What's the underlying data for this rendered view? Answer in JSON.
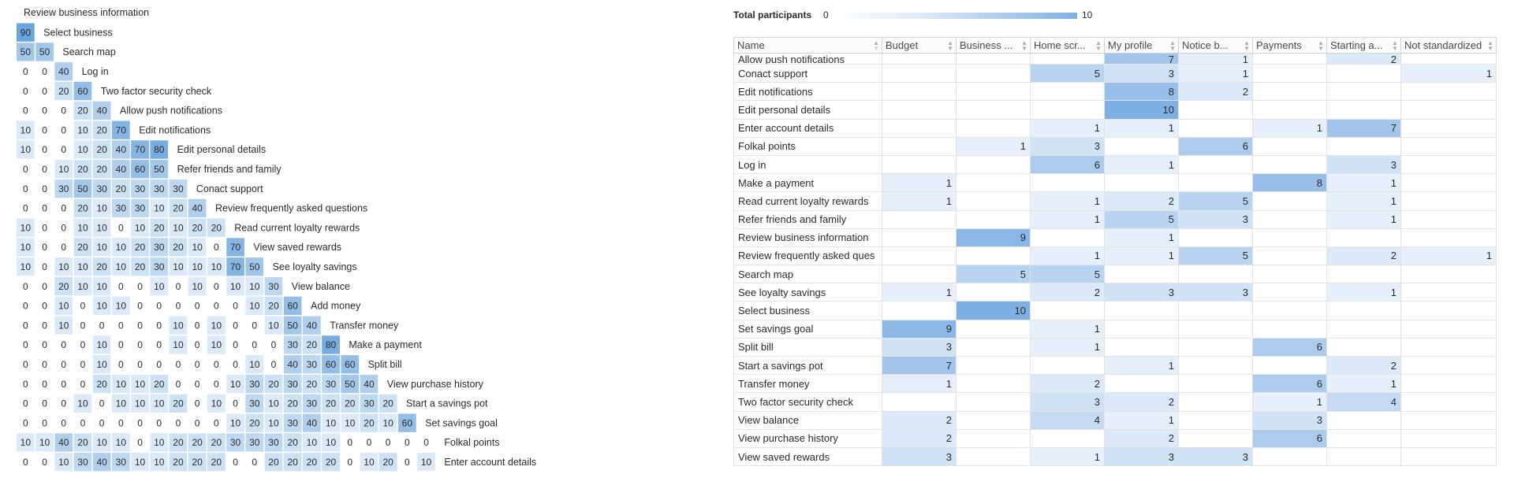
{
  "chart_data": [
    {
      "type": "heatmap",
      "title": "",
      "top_label": "Review business information",
      "rows": [
        {
          "label": "Select business",
          "values": [
            90
          ]
        },
        {
          "label": "Search map",
          "values": [
            50,
            50
          ]
        },
        {
          "label": "Log in",
          "values": [
            0,
            0,
            40
          ]
        },
        {
          "label": "Two factor security check",
          "values": [
            0,
            0,
            20,
            60
          ]
        },
        {
          "label": "Allow push notifications",
          "values": [
            0,
            0,
            0,
            20,
            40
          ]
        },
        {
          "label": "Edit notifications",
          "values": [
            10,
            0,
            0,
            10,
            20,
            70
          ]
        },
        {
          "label": "Edit personal details",
          "values": [
            10,
            0,
            0,
            10,
            20,
            40,
            70,
            80
          ]
        },
        {
          "label": "Refer friends and family",
          "values": [
            0,
            0,
            10,
            20,
            20,
            40,
            60,
            50
          ]
        },
        {
          "label": "Conact support",
          "values": [
            0,
            0,
            30,
            50,
            30,
            20,
            30,
            30,
            30
          ]
        },
        {
          "label": "Review frequently asked questions",
          "values": [
            0,
            0,
            0,
            20,
            10,
            30,
            30,
            10,
            20,
            40
          ]
        },
        {
          "label": "Read current loyalty rewards",
          "values": [
            10,
            0,
            0,
            10,
            10,
            0,
            10,
            20,
            10,
            20,
            20
          ]
        },
        {
          "label": "View saved rewards",
          "values": [
            10,
            0,
            0,
            20,
            10,
            10,
            20,
            30,
            20,
            10,
            0,
            70
          ]
        },
        {
          "label": "See loyalty savings",
          "values": [
            10,
            0,
            10,
            10,
            20,
            10,
            20,
            30,
            10,
            10,
            10,
            70,
            50
          ]
        },
        {
          "label": "View balance",
          "values": [
            0,
            0,
            20,
            10,
            10,
            0,
            0,
            10,
            0,
            10,
            0,
            10,
            10,
            30
          ]
        },
        {
          "label": "Add money",
          "values": [
            0,
            0,
            10,
            0,
            10,
            10,
            0,
            0,
            0,
            0,
            0,
            0,
            10,
            20,
            60
          ]
        },
        {
          "label": "Transfer money",
          "values": [
            0,
            0,
            10,
            0,
            0,
            0,
            0,
            0,
            10,
            0,
            10,
            0,
            0,
            10,
            50,
            40
          ]
        },
        {
          "label": "Make a payment",
          "values": [
            0,
            0,
            0,
            0,
            10,
            0,
            0,
            0,
            10,
            0,
            10,
            0,
            0,
            0,
            30,
            20,
            80
          ]
        },
        {
          "label": "Split bill",
          "values": [
            0,
            0,
            0,
            0,
            10,
            0,
            0,
            0,
            0,
            0,
            0,
            0,
            10,
            0,
            40,
            30,
            60,
            60
          ]
        },
        {
          "label": "View purchase history",
          "values": [
            0,
            0,
            0,
            0,
            20,
            10,
            10,
            20,
            0,
            0,
            0,
            10,
            30,
            20,
            30,
            20,
            30,
            50,
            40
          ]
        },
        {
          "label": "Start a savings pot",
          "values": [
            0,
            0,
            0,
            10,
            0,
            10,
            10,
            10,
            20,
            0,
            10,
            0,
            30,
            10,
            20,
            30,
            20,
            20,
            30,
            20
          ]
        },
        {
          "label": "Set savings goal",
          "values": [
            0,
            0,
            0,
            0,
            0,
            0,
            0,
            0,
            0,
            0,
            0,
            10,
            20,
            10,
            30,
            40,
            10,
            10,
            20,
            10,
            60
          ]
        },
        {
          "label": "Folkal points",
          "values": [
            10,
            10,
            40,
            20,
            10,
            10,
            0,
            10,
            20,
            20,
            20,
            30,
            30,
            30,
            20,
            10,
            10,
            0,
            0,
            0,
            0,
            0
          ]
        },
        {
          "label": "Enter account details",
          "values": [
            0,
            0,
            10,
            30,
            40,
            30,
            10,
            10,
            20,
            20,
            20,
            0,
            0,
            20,
            20,
            20,
            20,
            0,
            10,
            20,
            0,
            10
          ]
        }
      ],
      "value_range": [
        0,
        100
      ],
      "colors": {
        "high": "#5b9bd8",
        "low": "#ffffff",
        "border": "#ffffff"
      }
    },
    {
      "type": "table",
      "legend": {
        "title": "Total participants",
        "min": "0",
        "max": "10"
      },
      "columns": [
        "Name",
        "Budget",
        "Business ...",
        "Home scr...",
        "My profile",
        "Notice b...",
        "Payments",
        "Starting a...",
        "Not standardized"
      ],
      "rows": [
        {
          "name": "Allow push notifications",
          "values": [
            null,
            null,
            null,
            7,
            1,
            null,
            2,
            null
          ]
        },
        {
          "name": "Conact support",
          "values": [
            null,
            null,
            5,
            3,
            1,
            null,
            null,
            1
          ]
        },
        {
          "name": "Edit notifications",
          "values": [
            null,
            null,
            null,
            8,
            2,
            null,
            null,
            null
          ]
        },
        {
          "name": "Edit personal details",
          "values": [
            null,
            null,
            null,
            10,
            null,
            null,
            null,
            null
          ]
        },
        {
          "name": "Enter account details",
          "values": [
            null,
            null,
            1,
            1,
            null,
            1,
            7,
            null
          ]
        },
        {
          "name": "Folkal points",
          "values": [
            null,
            1,
            3,
            null,
            6,
            null,
            null,
            null
          ]
        },
        {
          "name": "Log in",
          "values": [
            null,
            null,
            6,
            1,
            null,
            null,
            3,
            null
          ]
        },
        {
          "name": "Make a payment",
          "values": [
            1,
            null,
            null,
            null,
            null,
            8,
            1,
            null
          ]
        },
        {
          "name": "Read current loyalty rewards",
          "values": [
            1,
            null,
            1,
            2,
            5,
            null,
            1,
            null
          ]
        },
        {
          "name": "Refer friends and family",
          "values": [
            null,
            null,
            1,
            5,
            3,
            null,
            1,
            null
          ]
        },
        {
          "name": "Review business information",
          "values": [
            null,
            9,
            null,
            1,
            null,
            null,
            null,
            null
          ]
        },
        {
          "name": "Review frequently asked ques",
          "values": [
            null,
            null,
            1,
            1,
            5,
            null,
            2,
            1
          ]
        },
        {
          "name": "Search map",
          "values": [
            null,
            5,
            5,
            null,
            null,
            null,
            null,
            null
          ]
        },
        {
          "name": "See loyalty savings",
          "values": [
            1,
            null,
            2,
            3,
            3,
            null,
            1,
            null
          ]
        },
        {
          "name": "Select business",
          "values": [
            null,
            10,
            null,
            null,
            null,
            null,
            null,
            null
          ]
        },
        {
          "name": "Set savings goal",
          "values": [
            9,
            null,
            1,
            null,
            null,
            null,
            null,
            null
          ]
        },
        {
          "name": "Split bill",
          "values": [
            3,
            null,
            1,
            null,
            null,
            6,
            null,
            null
          ]
        },
        {
          "name": "Start a savings pot",
          "values": [
            7,
            null,
            null,
            1,
            null,
            null,
            2,
            null
          ]
        },
        {
          "name": "Transfer money",
          "values": [
            1,
            null,
            2,
            null,
            null,
            6,
            1,
            null
          ]
        },
        {
          "name": "Two factor security check",
          "values": [
            null,
            null,
            3,
            2,
            null,
            1,
            4,
            null
          ]
        },
        {
          "name": "View balance",
          "values": [
            2,
            null,
            4,
            1,
            null,
            3,
            null,
            null
          ]
        },
        {
          "name": "View purchase history",
          "values": [
            2,
            null,
            null,
            2,
            null,
            6,
            null,
            null
          ]
        },
        {
          "name": "View saved rewards",
          "values": [
            3,
            null,
            1,
            3,
            3,
            null,
            null,
            null
          ]
        }
      ],
      "value_range": [
        0,
        10
      ],
      "colors": {
        "high": "#7fb0e3",
        "low": "#ffffff",
        "border": "#e3e3e3"
      }
    }
  ]
}
